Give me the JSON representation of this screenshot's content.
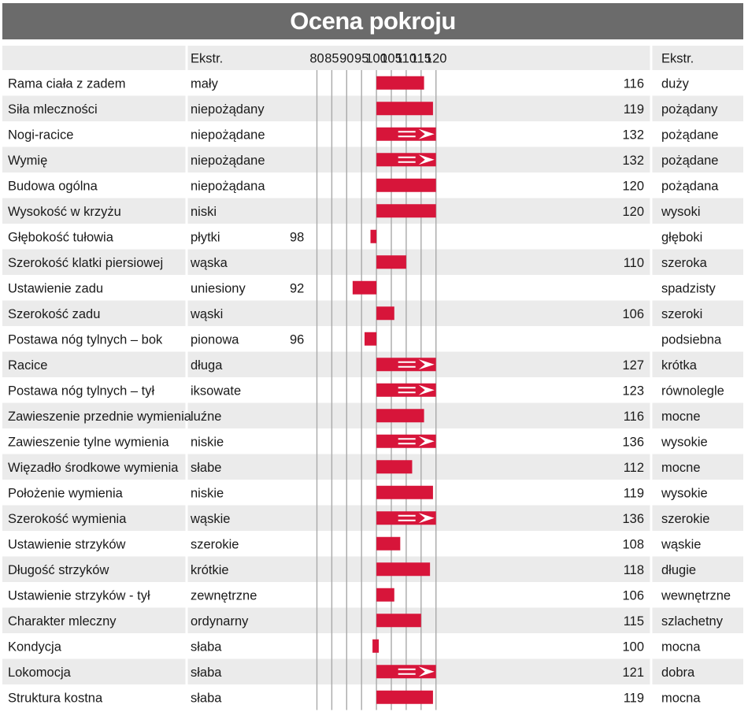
{
  "title": "Ocena pokroju",
  "header": {
    "left_extreme": "Ekstr.",
    "right_extreme": "Ekstr."
  },
  "colors": {
    "bar": "#d7153a",
    "title_bg": "#6b6b6b",
    "row_bg": "#ebebeb",
    "grid": "#a9a9a9"
  },
  "chart_data": {
    "type": "bar",
    "orientation": "horizontal",
    "baseline": 100,
    "xlim": [
      78,
      122
    ],
    "ticks": [
      80,
      85,
      90,
      95,
      100,
      105,
      110,
      115,
      120
    ],
    "grid": true,
    "rows": [
      {
        "trait": "Rama ciała z zadem",
        "left": "mały",
        "right": "duży",
        "value": 116
      },
      {
        "trait": "Siła mleczności",
        "left": "niepożądany",
        "right": "pożądany",
        "value": 119
      },
      {
        "trait": "Nogi-racice",
        "left": "niepożądane",
        "right": "pożądane",
        "value": 132
      },
      {
        "trait": "Wymię",
        "left": "niepożądane",
        "right": "pożądane",
        "value": 132
      },
      {
        "trait": "Budowa ogólna",
        "left": "niepożądana",
        "right": "pożądana",
        "value": 120
      },
      {
        "trait": "Wysokość w krzyżu",
        "left": "niski",
        "right": "wysoki",
        "value": 120
      },
      {
        "trait": "Głębokość tułowia",
        "left": "płytki",
        "right": "głęboki",
        "value": 98
      },
      {
        "trait": "Szerokość klatki piersiowej",
        "left": "wąska",
        "right": "szeroka",
        "value": 110
      },
      {
        "trait": "Ustawienie zadu",
        "left": "uniesiony",
        "right": "spadzisty",
        "value": 92
      },
      {
        "trait": "Szerokość zadu",
        "left": "wąski",
        "right": "szeroki",
        "value": 106
      },
      {
        "trait": "Postawa nóg tylnych –  bok",
        "left": "pionowa",
        "right": "podsiebna",
        "value": 96
      },
      {
        "trait": "Racice",
        "left": "długa",
        "right": "krótka",
        "value": 127
      },
      {
        "trait": "Postawa nóg tylnych –  tył",
        "left": "iksowate",
        "right": "równolegle",
        "value": 123
      },
      {
        "trait": "Zawieszenie przednie wymienia",
        "left": "luźne",
        "right": "mocne",
        "value": 116
      },
      {
        "trait": "Zawieszenie tylne wymienia",
        "left": "niskie",
        "right": "wysokie",
        "value": 136
      },
      {
        "trait": "Więzadło środkowe wymienia",
        "left": "słabe",
        "right": "mocne",
        "value": 112
      },
      {
        "trait": "Położenie wymienia",
        "left": "niskie",
        "right": "wysokie",
        "value": 119
      },
      {
        "trait": "Szerokość wymienia",
        "left": "wąskie",
        "right": "szerokie",
        "value": 136
      },
      {
        "trait": "Ustawienie strzyków",
        "left": "szerokie",
        "right": "wąskie",
        "value": 108
      },
      {
        "trait": "Długość strzyków",
        "left": "krótkie",
        "right": "długie",
        "value": 118
      },
      {
        "trait": "Ustawienie strzyków - tył",
        "left": "zewnętrzne",
        "right": "wewnętrzne",
        "value": 106
      },
      {
        "trait": "Charakter mleczny",
        "left": "ordynarny",
        "right": "szlachetny",
        "value": 115
      },
      {
        "trait": "Kondycja",
        "left": "słaba",
        "right": "mocna",
        "value": 100
      },
      {
        "trait": "Lokomocja",
        "left": "słaba",
        "right": "dobra",
        "value": 121
      },
      {
        "trait": "Struktura kostna",
        "left": "słaba",
        "right": "mocna",
        "value": 119
      }
    ]
  }
}
